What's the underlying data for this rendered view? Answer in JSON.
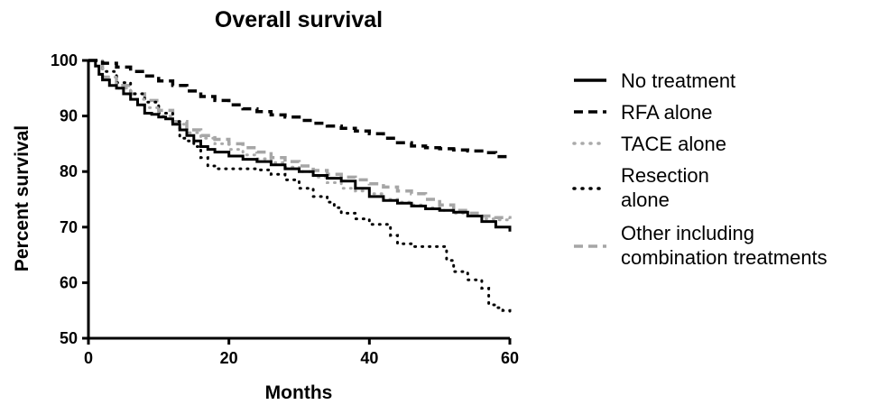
{
  "chart_data": {
    "type": "line",
    "title": "Overall survival",
    "xlabel": "Months",
    "ylabel": "Percent survival",
    "xlim": [
      0,
      60
    ],
    "ylim": [
      50,
      100
    ],
    "xticks": [
      0,
      20,
      40,
      60
    ],
    "yticks": [
      50,
      60,
      70,
      80,
      90,
      100
    ],
    "grid": false,
    "legend_position": "right",
    "series": [
      {
        "name": "No treatment",
        "color": "#000000",
        "style": "solid",
        "x": [
          0,
          1,
          1.5,
          2,
          3,
          4,
          5,
          6,
          7,
          8,
          9,
          10,
          11,
          12,
          13,
          14,
          15,
          16,
          17,
          18,
          20,
          22,
          24,
          26,
          28,
          30,
          32,
          34,
          36,
          38,
          40,
          42,
          44,
          46,
          48,
          50,
          52,
          54,
          56,
          58,
          60
        ],
        "y": [
          100,
          99,
          97.5,
          96.5,
          95.5,
          95,
          94,
          93,
          92,
          90.5,
          90.3,
          89.8,
          89.5,
          88.5,
          87.5,
          86.5,
          85.5,
          84.5,
          84,
          83.5,
          82.8,
          82.2,
          81.8,
          81.2,
          80.5,
          80,
          79.3,
          78.8,
          78.3,
          77,
          75.5,
          74.8,
          74.3,
          73.8,
          73.3,
          73,
          72.7,
          72,
          71,
          70,
          69.2
        ]
      },
      {
        "name": "RFA alone",
        "color": "#000000",
        "style": "dashed",
        "x": [
          0,
          2,
          4,
          6,
          8,
          10,
          12,
          14,
          16,
          18,
          20,
          22,
          24,
          26,
          28,
          30,
          32,
          34,
          36,
          38,
          40,
          42,
          44,
          46,
          48,
          50,
          52,
          54,
          56,
          58,
          60
        ],
        "y": [
          100,
          99.5,
          98.8,
          98,
          97.2,
          96.3,
          95.5,
          94.5,
          93.5,
          92.8,
          92,
          91.3,
          90.8,
          90.2,
          89.8,
          89.2,
          88.7,
          88.2,
          87.8,
          87.3,
          86.8,
          86,
          85.2,
          84.6,
          84.3,
          84.1,
          83.9,
          83.7,
          83.4,
          82.7,
          82.6
        ]
      },
      {
        "name": "TACE alone",
        "color": "#aaaaaa",
        "style": "dotted",
        "x": [
          0,
          2,
          4,
          6,
          8,
          10,
          12,
          14,
          16,
          18,
          20,
          22,
          24,
          26,
          28,
          30,
          32,
          34,
          36,
          38,
          40,
          42,
          44,
          46,
          48,
          50,
          52,
          54,
          56,
          58,
          60
        ],
        "y": [
          100,
          97,
          95,
          93,
          91.5,
          90,
          88.5,
          87,
          86,
          85,
          84,
          83,
          82.3,
          81.6,
          80.8,
          80,
          79,
          78,
          77,
          76.5,
          76,
          75,
          74.5,
          74,
          73.5,
          73,
          72.5,
          72,
          71.5,
          71.3,
          71
        ]
      },
      {
        "name": "Resection alone",
        "color": "#000000",
        "style": "dotted",
        "x": [
          0,
          2,
          4,
          6,
          8,
          10,
          12,
          13,
          14,
          15,
          16,
          17,
          18,
          20,
          22,
          24,
          26,
          28,
          30,
          32,
          34,
          35,
          36,
          38,
          40,
          42,
          43,
          44,
          46,
          48,
          50,
          51,
          52,
          54,
          56,
          57,
          58,
          59,
          60
        ],
        "y": [
          100,
          98,
          96,
          94,
          92.5,
          90.5,
          89,
          86,
          85.5,
          84.5,
          82.5,
          81,
          80.5,
          80.5,
          80.5,
          80.3,
          79.5,
          78.5,
          77,
          75.5,
          74.5,
          73.5,
          72.5,
          71.5,
          70.5,
          70.5,
          68.5,
          67,
          66.5,
          66.5,
          66.5,
          64,
          62,
          60.5,
          59,
          56,
          55.5,
          55,
          54.5
        ]
      },
      {
        "name": "Other including combination treatments",
        "color": "#a6a6a6",
        "style": "dashed",
        "x": [
          0,
          2,
          4,
          6,
          8,
          10,
          12,
          14,
          16,
          18,
          20,
          22,
          24,
          26,
          28,
          30,
          32,
          34,
          36,
          38,
          40,
          42,
          44,
          46,
          48,
          50,
          52,
          54,
          56,
          58,
          60
        ],
        "y": [
          100,
          97,
          95.5,
          94,
          92.8,
          91,
          89,
          87.5,
          86.5,
          85.8,
          85,
          84.3,
          83.5,
          82.5,
          81.8,
          81,
          80.2,
          79.5,
          79,
          78.5,
          77.8,
          77.2,
          76.5,
          76,
          75,
          74,
          73,
          72.5,
          72,
          71.7,
          71.5
        ]
      }
    ]
  }
}
